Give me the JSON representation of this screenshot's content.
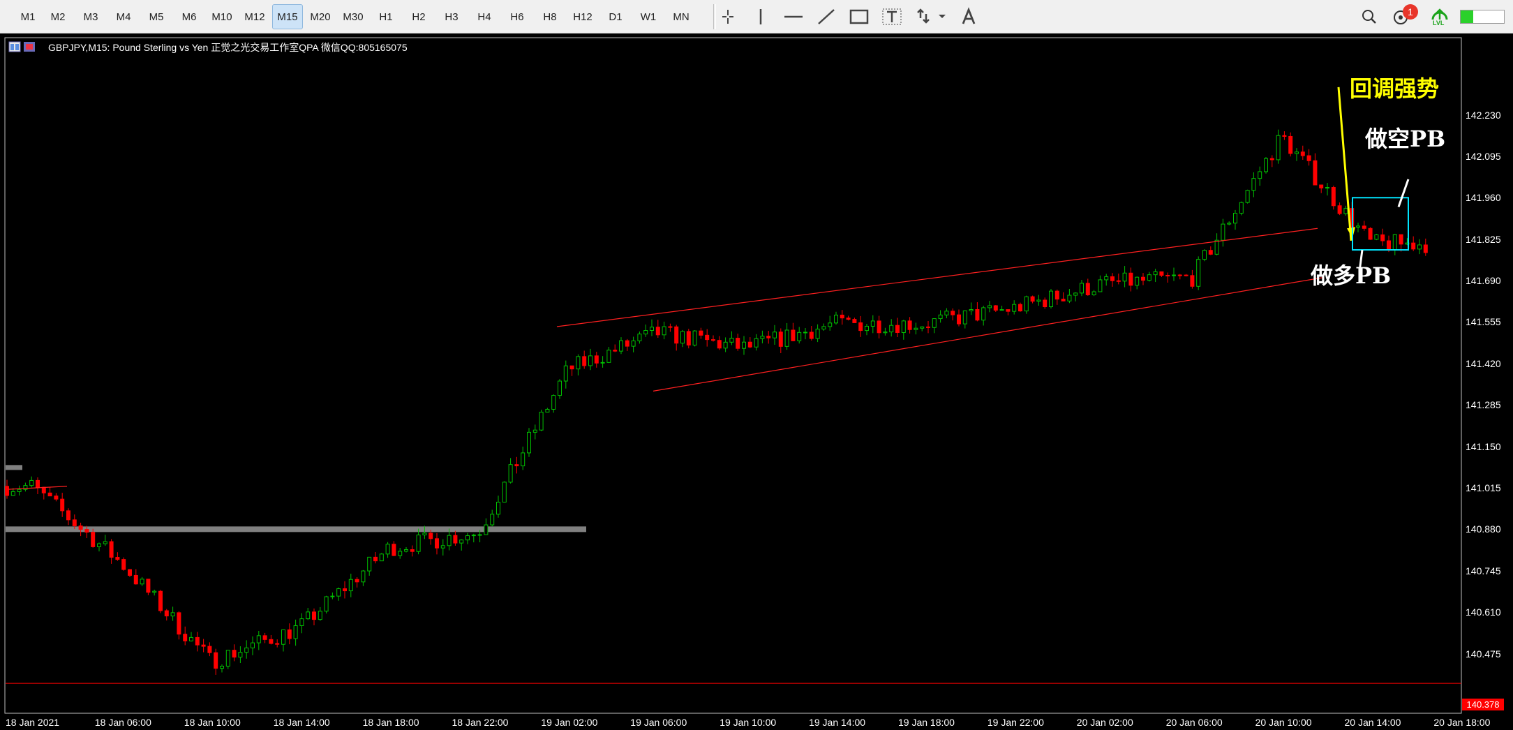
{
  "toolbar": {
    "timeframes": [
      "M1",
      "M2",
      "M3",
      "M4",
      "M5",
      "M6",
      "M10",
      "M12",
      "M15",
      "M20",
      "M30",
      "H1",
      "H2",
      "H3",
      "H4",
      "H6",
      "H8",
      "H12",
      "D1",
      "W1",
      "MN"
    ],
    "active_timeframe": "M15",
    "drawing_tools": [
      "crosshair-icon",
      "vertical-line-icon",
      "horizontal-line-icon",
      "trendline-icon",
      "rectangle-icon",
      "text-tool-icon",
      "arrows-icon",
      "text-label-icon"
    ],
    "notification_count": "1",
    "signal_label": "LVL"
  },
  "chart": {
    "title": "GBPJPY,M15:  Pound Sterling vs Yen 正觉之光交易工作室QPA 微信QQ:805165075",
    "current_price": "140.378",
    "price_ticks": [
      "142.230",
      "142.095",
      "141.960",
      "141.825",
      "141.690",
      "141.555",
      "141.420",
      "141.285",
      "141.150",
      "141.015",
      "140.880",
      "140.745",
      "140.610",
      "140.475"
    ],
    "time_ticks": [
      "18 Jan 2021",
      "18 Jan 06:00",
      "18 Jan 10:00",
      "18 Jan 14:00",
      "18 Jan 18:00",
      "18 Jan 22:00",
      "19 Jan 02:00",
      "19 Jan 06:00",
      "19 Jan 10:00",
      "19 Jan 14:00",
      "19 Jan 18:00",
      "19 Jan 22:00",
      "20 Jan 02:00",
      "20 Jan 06:00",
      "20 Jan 10:00",
      "20 Jan 14:00",
      "20 Jan 18:00"
    ],
    "annotations": {
      "pullback_strong": "回调强势",
      "short_pb": "做空PB",
      "long_pb": "做多PB"
    },
    "colors": {
      "background": "#000000",
      "bull": "#00c000",
      "bear": "#ff0000",
      "channel": "#ff2020",
      "level": "#808080",
      "arrow": "#ffff00",
      "box": "#00e5ff"
    }
  },
  "chart_data": {
    "type": "candlestick",
    "symbol": "GBPJPY",
    "timeframe": "M15",
    "x_range": [
      "18 Jan 2021",
      "20 Jan 18:00"
    ],
    "ylim": [
      140.378,
      142.3
    ],
    "close_path": [
      {
        "t": "18 Jan 2021",
        "close": 141.02
      },
      {
        "t": "18 Jan 06:00",
        "close": 140.77
      },
      {
        "t": "18 Jan 10:00",
        "close": 140.45
      },
      {
        "t": "18 Jan 14:00",
        "close": 140.56
      },
      {
        "t": "18 Jan 18:00",
        "close": 140.82
      },
      {
        "t": "18 Jan 22:00",
        "close": 140.87
      },
      {
        "t": "19 Jan 02:00",
        "close": 141.4
      },
      {
        "t": "19 Jan 06:00",
        "close": 141.52
      },
      {
        "t": "19 Jan 10:00",
        "close": 141.47
      },
      {
        "t": "19 Jan 14:00",
        "close": 141.55
      },
      {
        "t": "19 Jan 18:00",
        "close": 141.55
      },
      {
        "t": "19 Jan 22:00",
        "close": 141.6
      },
      {
        "t": "20 Jan 02:00",
        "close": 141.68
      },
      {
        "t": "20 Jan 06:00",
        "close": 141.7
      },
      {
        "t": "20 Jan 10:00",
        "close": 142.16
      },
      {
        "t": "20 Jan 14:00",
        "close": 141.81
      }
    ]
  }
}
